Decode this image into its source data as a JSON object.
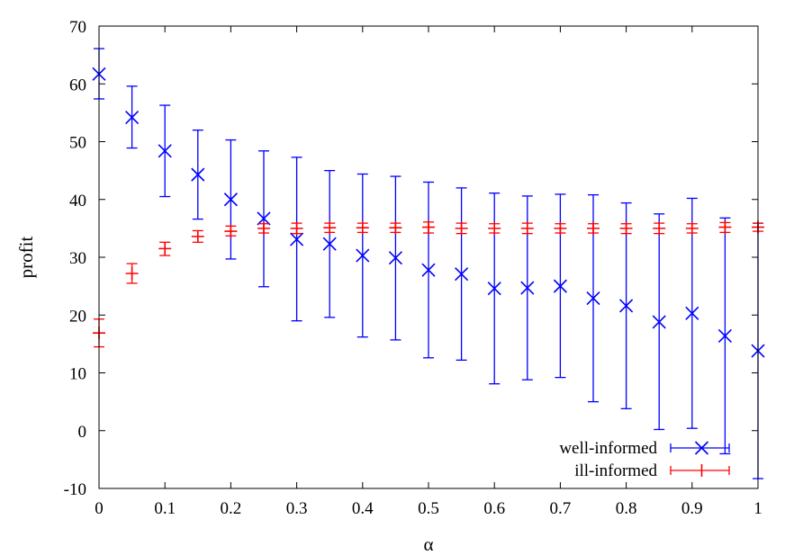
{
  "chart_data": {
    "type": "scatter",
    "title": "",
    "xlabel": "α",
    "ylabel": "profit",
    "xlim": [
      0,
      1
    ],
    "ylim": [
      -10,
      70
    ],
    "x_ticks": [
      "0",
      "0.1",
      "0.2",
      "0.3",
      "0.4",
      "0.5",
      "0.6",
      "0.7",
      "0.8",
      "0.9",
      "1"
    ],
    "y_ticks": [
      "-10",
      "0",
      "10",
      "20",
      "30",
      "40",
      "50",
      "60",
      "70"
    ],
    "grid": false,
    "legend_position": "bottom-right",
    "x": [
      0,
      0.05,
      0.1,
      0.15,
      0.2,
      0.25,
      0.3,
      0.35,
      0.4,
      0.45,
      0.5,
      0.55,
      0.6,
      0.65,
      0.7,
      0.75,
      0.8,
      0.85,
      0.9,
      0.95,
      1
    ],
    "series": [
      {
        "name": "well-informed",
        "color": "#0000ff",
        "marker": "x",
        "values": [
          61.7,
          54.2,
          48.4,
          44.3,
          40.0,
          36.7,
          33.1,
          32.3,
          30.3,
          29.9,
          27.8,
          27.1,
          24.6,
          24.7,
          25.0,
          22.9,
          21.6,
          18.8,
          20.3,
          16.4,
          13.8
        ],
        "lower": [
          57.4,
          48.9,
          40.5,
          36.6,
          29.7,
          24.9,
          19.0,
          19.6,
          16.2,
          15.7,
          12.6,
          12.2,
          8.1,
          8.8,
          9.2,
          5.0,
          3.8,
          0.2,
          0.4,
          -4.0,
          -8.3
        ],
        "upper": [
          66.1,
          59.6,
          56.3,
          52.0,
          50.3,
          48.4,
          47.3,
          45.0,
          44.4,
          44.0,
          43.0,
          42.0,
          41.1,
          40.6,
          40.9,
          40.8,
          39.4,
          37.5,
          40.2,
          36.8,
          35.9
        ]
      },
      {
        "name": "ill-informed",
        "color": "#ff0000",
        "marker": "+",
        "values": [
          16.9,
          27.2,
          31.5,
          33.6,
          34.5,
          35.0,
          35.0,
          35.1,
          35.1,
          35.1,
          35.2,
          35.0,
          35.0,
          35.0,
          35.0,
          35.0,
          35.0,
          35.0,
          35.0,
          35.2,
          35.2
        ],
        "lower": [
          14.5,
          25.5,
          30.3,
          32.6,
          33.7,
          34.2,
          34.1,
          34.3,
          34.3,
          34.3,
          34.2,
          34.1,
          34.2,
          34.1,
          34.2,
          34.2,
          34.1,
          34.1,
          34.2,
          34.3,
          34.5
        ],
        "upper": [
          19.3,
          28.9,
          32.6,
          34.6,
          35.4,
          35.8,
          35.9,
          35.9,
          35.9,
          35.9,
          36.1,
          35.9,
          35.8,
          35.9,
          35.8,
          35.8,
          35.8,
          35.9,
          35.8,
          36.0,
          35.9
        ]
      }
    ]
  }
}
